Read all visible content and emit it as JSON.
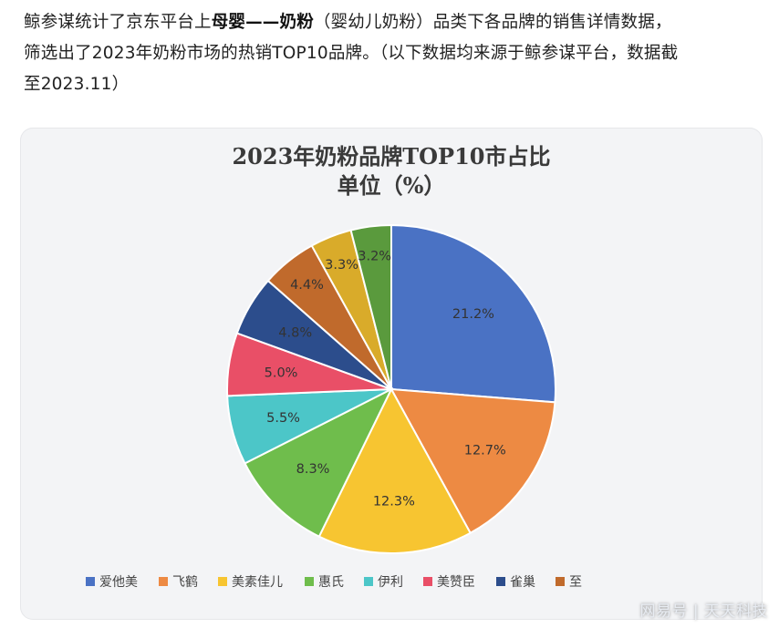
{
  "intro": {
    "line1_part1": "鲸参谋统计了京东平台上",
    "line1_bold": "母婴——奶粉",
    "line1_part2": "（婴幼儿奶粉）品类下各品牌的销售详情数据，",
    "line2": "筛选出了2023年奶粉市场的热销TOP10品牌。（以下数据均来源于鲸参谋平台，数据截",
    "line3": "至2023.11）"
  },
  "chart_data": {
    "type": "pie",
    "title": "2023年奶粉品牌TOP10市占比",
    "subtitle": "单位（%）",
    "unit": "%",
    "legend_position": "bottom",
    "start_angle_deg": 0,
    "direction": "clockwise",
    "slices": [
      {
        "label": "爱他美",
        "value": 21.2,
        "value_label": "21.2%",
        "color": "#4a72c4"
      },
      {
        "label": "飞鹤",
        "value": 12.7,
        "value_label": "12.7%",
        "color": "#ed8a43"
      },
      {
        "label": "美素佳儿",
        "value": 12.3,
        "value_label": "12.3%",
        "color": "#f7c531"
      },
      {
        "label": "惠氏",
        "value": 8.3,
        "value_label": "8.3%",
        "color": "#6fbd4c"
      },
      {
        "label": "伊利",
        "value": 5.5,
        "value_label": "5.5%",
        "color": "#4cc6c8"
      },
      {
        "label": "美赞臣",
        "value": 5.0,
        "value_label": "5.0%",
        "color": "#e94f67"
      },
      {
        "label": "雀巢",
        "value": 4.8,
        "value_label": "4.8%",
        "color": "#2c4d8c"
      },
      {
        "label": "至",
        "value": 4.4,
        "value_label": "4.4%",
        "color": "#c06a2c"
      },
      {
        "label": "",
        "value": 3.3,
        "value_label": "3.3%",
        "color": "#d9ab2a"
      },
      {
        "label": "",
        "value": 3.2,
        "value_label": "3.2%",
        "color": "#5a9a3d"
      }
    ]
  },
  "watermark": {
    "text": "网易号 | 天天科技"
  }
}
